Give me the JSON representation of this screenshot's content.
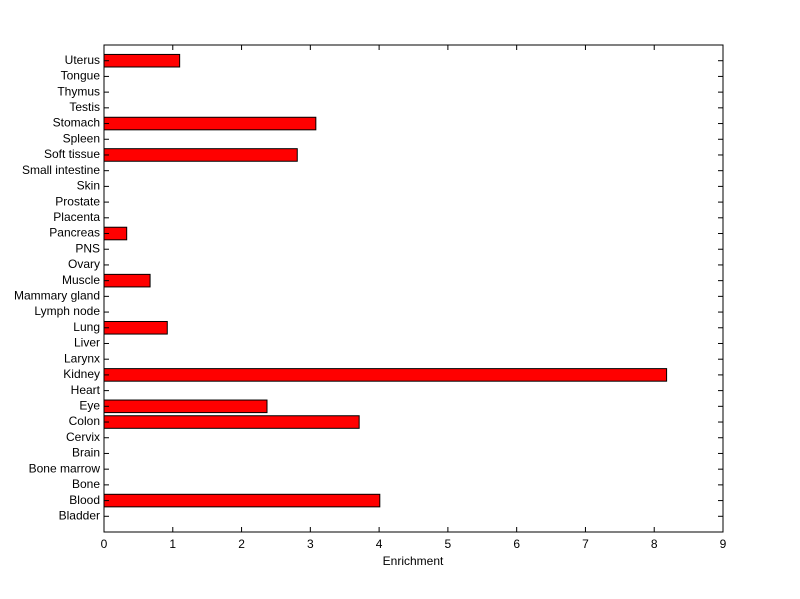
{
  "chart_data": {
    "type": "barh",
    "xlabel": "Enrichment",
    "categories": [
      "Bladder",
      "Blood",
      "Bone",
      "Bone marrow",
      "Brain",
      "Cervix",
      "Colon",
      "Eye",
      "Heart",
      "Kidney",
      "Larynx",
      "Liver",
      "Lung",
      "Lymph node",
      "Mammary gland",
      "Muscle",
      "Ovary",
      "PNS",
      "Pancreas",
      "Placenta",
      "Prostate",
      "Skin",
      "Small intestine",
      "Soft tissue",
      "Spleen",
      "Stomach",
      "Testis",
      "Thymus",
      "Tongue",
      "Uterus"
    ],
    "values": [
      0,
      4.01,
      0,
      0,
      0,
      0,
      3.71,
      2.37,
      0,
      8.18,
      0,
      0,
      0.92,
      0,
      0,
      0.67,
      0,
      0,
      0.33,
      0,
      0,
      0,
      0,
      2.81,
      0,
      3.08,
      0,
      0,
      0,
      1.1
    ],
    "color": "#ff0000",
    "xlim": [
      0,
      9
    ],
    "xticks": [
      0,
      1,
      2,
      3,
      4,
      5,
      6,
      7,
      8,
      9
    ],
    "grid": false
  }
}
